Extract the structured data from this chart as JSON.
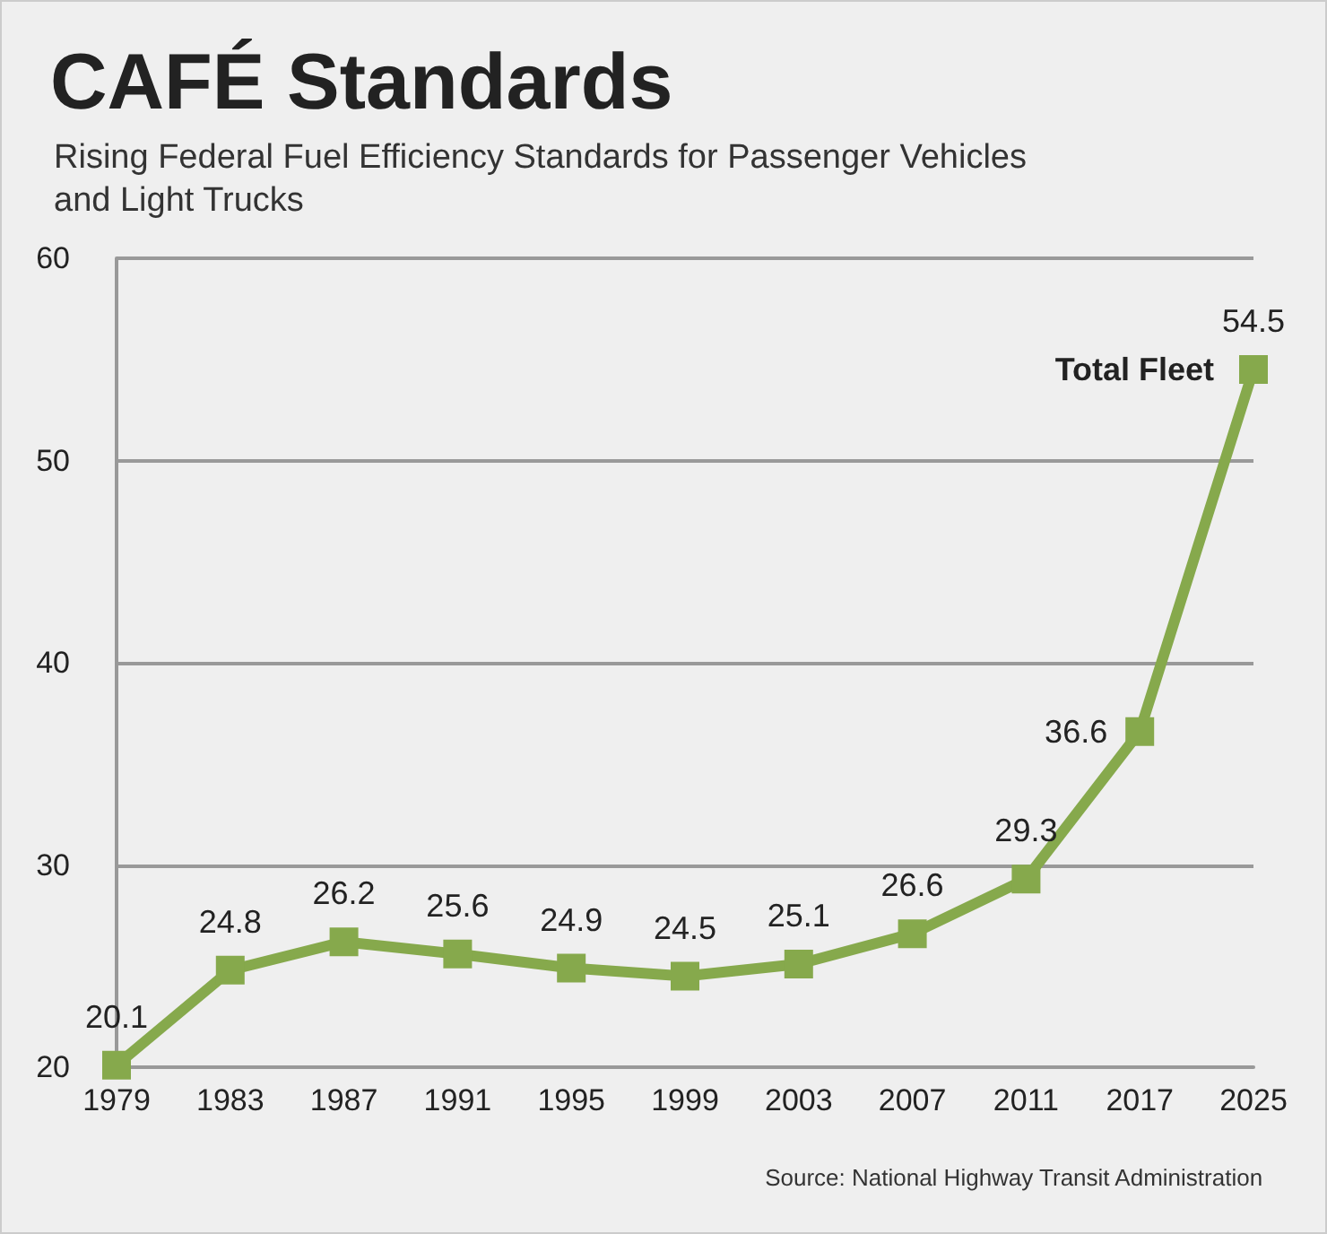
{
  "chart_data": {
    "type": "line",
    "title": "CAFÉ Standards",
    "subtitle": "Rising Federal Fuel Efficiency Standards for Passenger Vehicles\nand Light Trucks",
    "categories": [
      "1979",
      "1983",
      "1987",
      "1991",
      "1995",
      "1999",
      "2003",
      "2007",
      "2011",
      "2017",
      "2025"
    ],
    "series": [
      {
        "name": "Total Fleet",
        "color": "#86a94c",
        "values": [
          20.1,
          24.8,
          26.2,
          25.6,
          24.9,
          24.5,
          25.1,
          26.6,
          29.3,
          36.6,
          54.5
        ]
      }
    ],
    "ylim": [
      20,
      60
    ],
    "yticks": [
      20,
      30,
      40,
      50,
      60
    ],
    "grid": "y",
    "marker": "square",
    "line_style": "solid",
    "data_labels": true,
    "annotations": [
      "Source: National Highway Transit Administration"
    ]
  }
}
